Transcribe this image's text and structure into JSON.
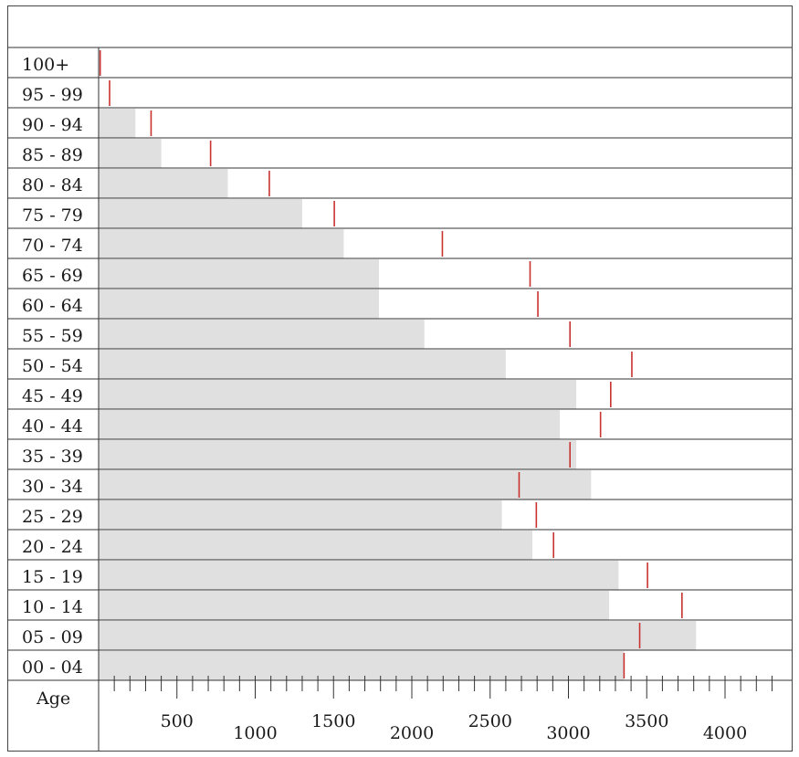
{
  "chart_data": {
    "type": "bar",
    "orientation": "horizontal",
    "xlabel": "Age",
    "categories": [
      "100+",
      "95 - 99",
      "90 - 94",
      "85 - 89",
      "80 - 84",
      "75 - 79",
      "70 - 74",
      "65 - 69",
      "60 - 64",
      "55 - 59",
      "50 - 54",
      "45 - 49",
      "40 - 44",
      "35 - 39",
      "30 - 34",
      "25 - 29",
      "20 - 24",
      "15 - 19",
      "10 - 14",
      "05 - 09",
      "00 - 04"
    ],
    "series": [
      {
        "values": [
          0,
          0,
          235,
          400,
          825,
          1300,
          1565,
          1790,
          1790,
          2080,
          2600,
          3050,
          2945,
          3050,
          3145,
          2575,
          2770,
          3320,
          3260,
          3815,
          3355
        ]
      },
      {
        "values": [
          10,
          70,
          335,
          715,
          1090,
          1505,
          2195,
          2755,
          2805,
          3010,
          3405,
          3270,
          3205,
          3010,
          2685,
          2795,
          2905,
          3505,
          3725,
          3455,
          3355
        ]
      }
    ],
    "colors": {
      "bar": "#e0e0e0",
      "marker": "#c8322f",
      "grid": "#333333",
      "frame": "#444444"
    },
    "x_ticks": {
      "labels_lower": [
        "500",
        "1500",
        "2500",
        "3500"
      ],
      "labels_upper": [
        "1000",
        "2000",
        "3000",
        "4000"
      ],
      "lower_values": [
        500,
        1500,
        2500,
        3500
      ],
      "upper_values": [
        1000,
        2000,
        3000,
        4000
      ],
      "minor_step": 100,
      "major_step": 500
    },
    "xlim": [
      0,
      4300
    ]
  }
}
